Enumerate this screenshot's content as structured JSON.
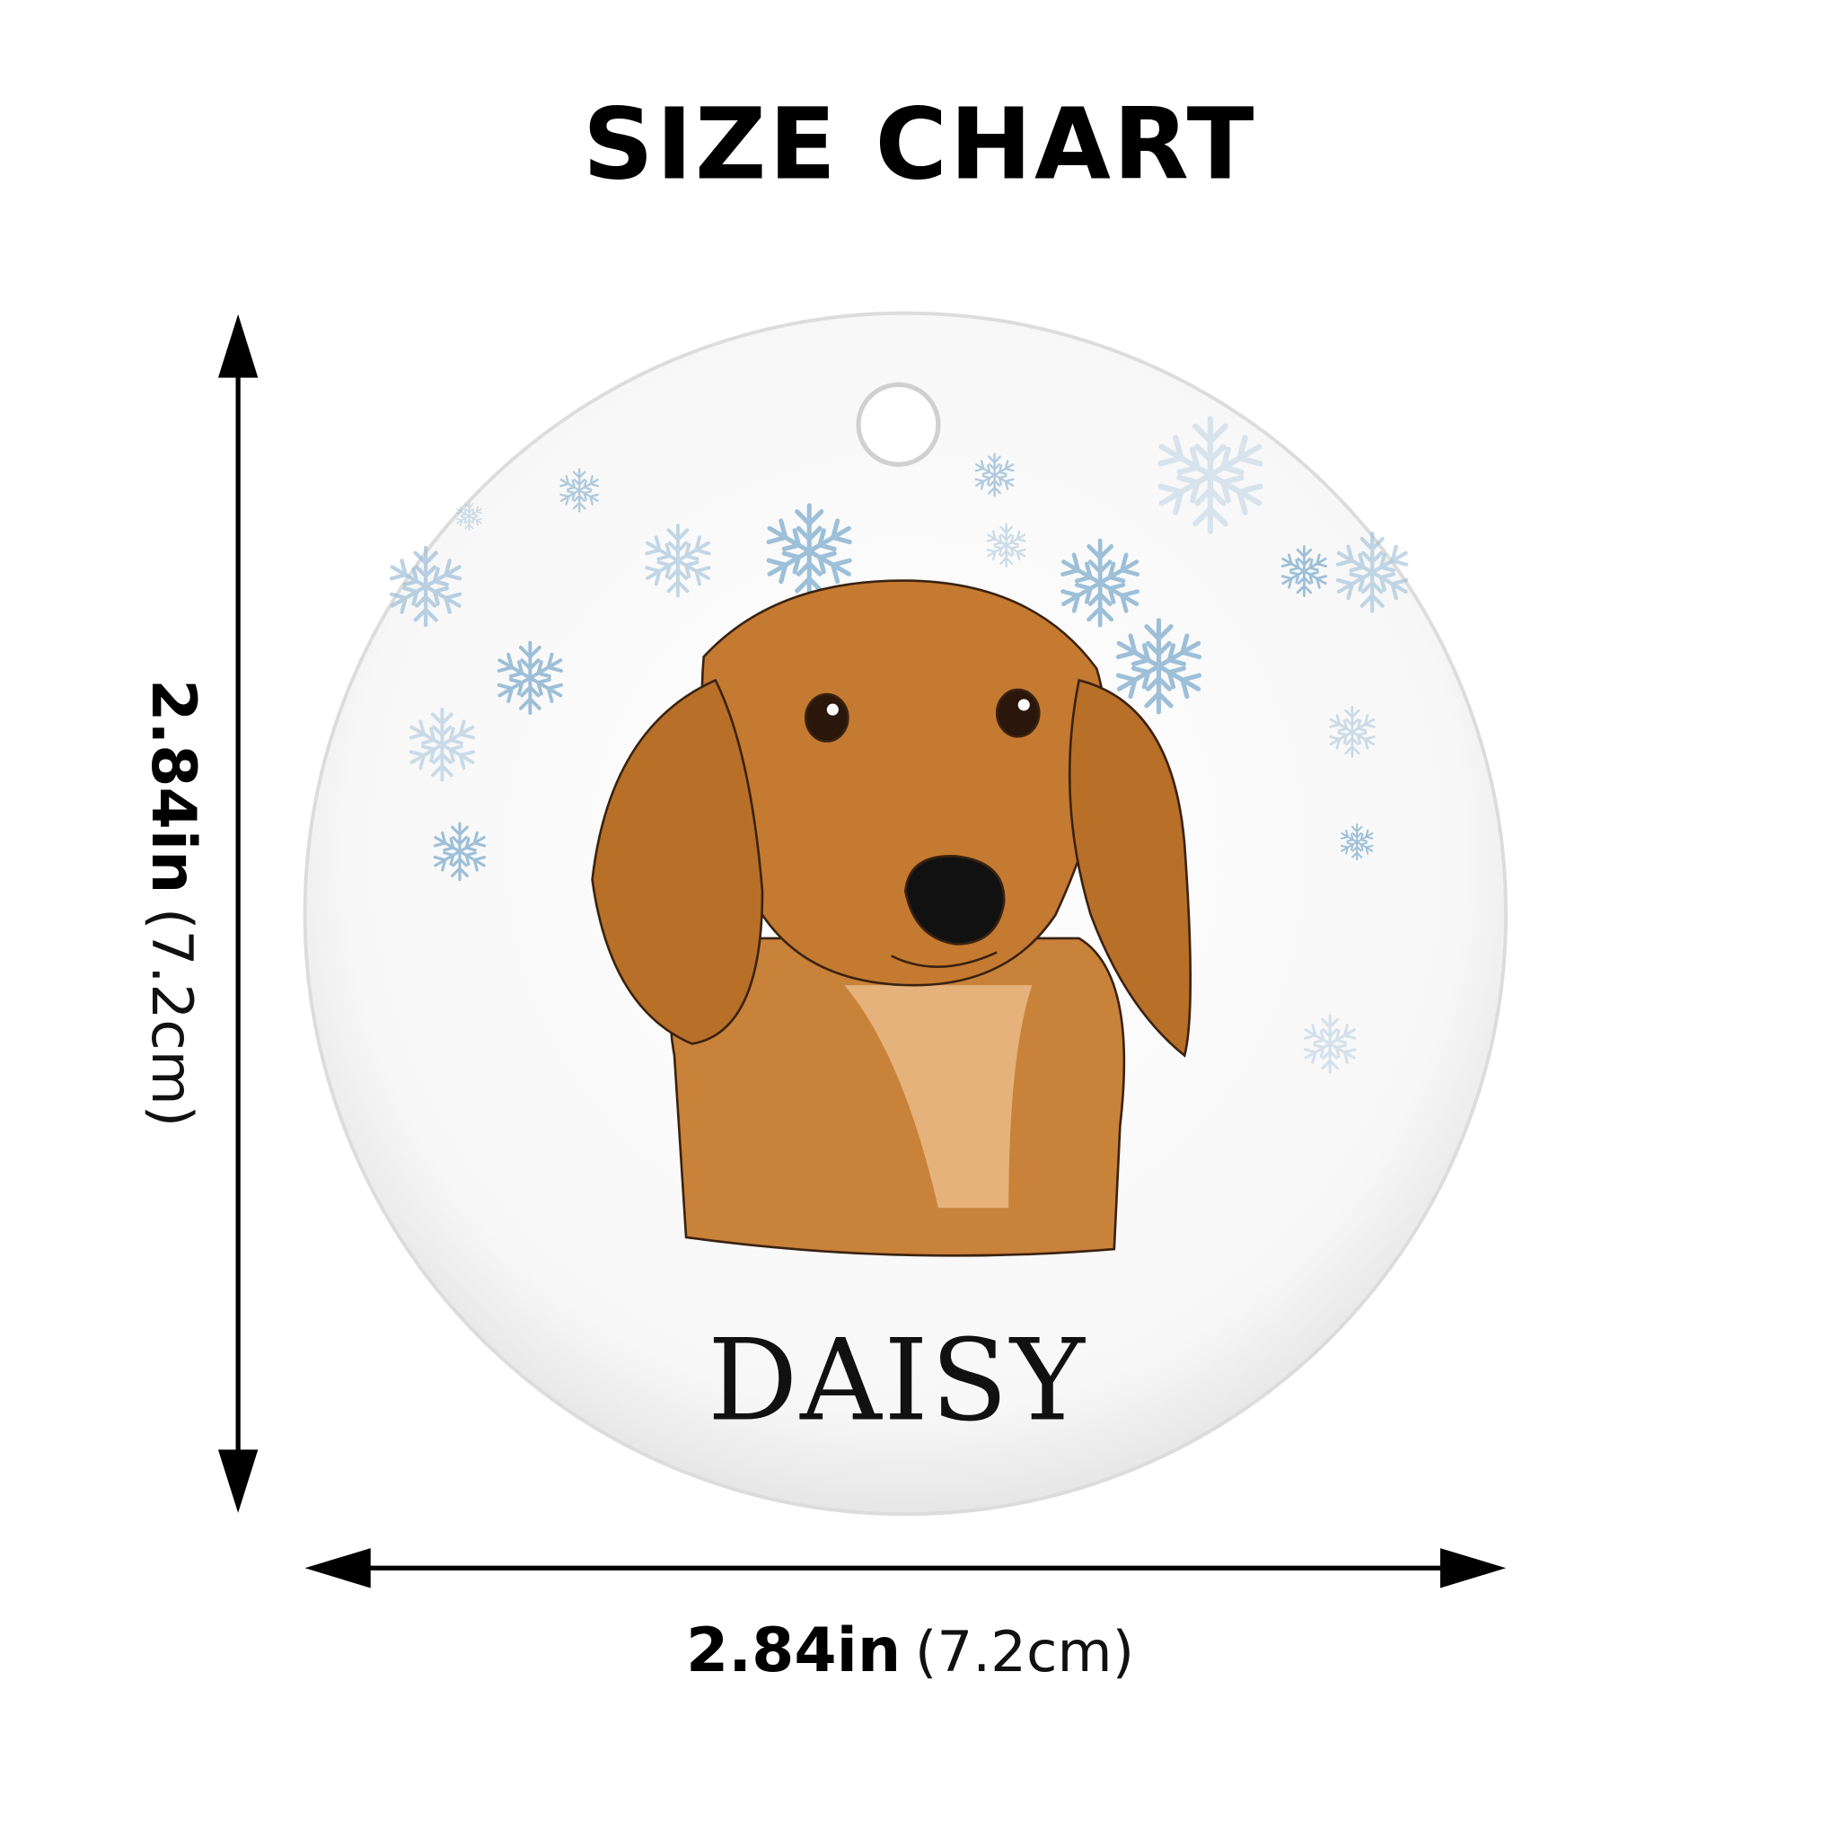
{
  "title": "SIZE CHART",
  "product": {
    "name_text": "DAISY",
    "shape": "round ornament",
    "illustration": "dachshund-watercolor",
    "snow_color": "#9dbfd8",
    "fur_color": "#c9823a"
  },
  "dimensions": {
    "height": {
      "imperial": "2.84in",
      "metric": "(7.2cm)"
    },
    "width": {
      "imperial": "2.84in",
      "metric": "(7.2cm)"
    }
  }
}
